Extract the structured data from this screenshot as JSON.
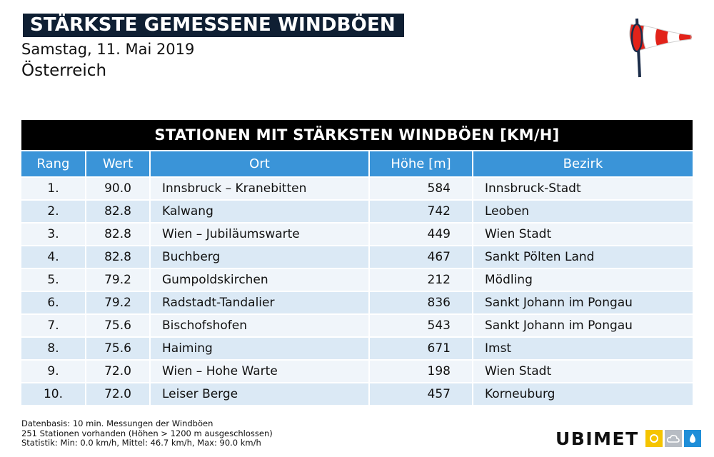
{
  "header": {
    "title": "STÄRKSTE GEMESSENE WINDBÖEN",
    "date": "Samstag, 11. Mai 2019",
    "region": "Österreich",
    "icon": "windsock-icon"
  },
  "table": {
    "title": "STATIONEN MIT STÄRKSTEN WINDBÖEN [KM/H]",
    "columns": [
      "Rang",
      "Wert",
      "Ort",
      "Höhe [m]",
      "Bezirk"
    ],
    "rows": [
      {
        "rank": "1.",
        "value": "90.0",
        "ort": "Innsbruck – Kranebitten",
        "hoehe": "584",
        "bezirk": "Innsbruck-Stadt"
      },
      {
        "rank": "2.",
        "value": "82.8",
        "ort": "Kalwang",
        "hoehe": "742",
        "bezirk": "Leoben"
      },
      {
        "rank": "3.",
        "value": "82.8",
        "ort": "Wien – Jubiläumswarte",
        "hoehe": "449",
        "bezirk": "Wien Stadt"
      },
      {
        "rank": "4.",
        "value": "82.8",
        "ort": "Buchberg",
        "hoehe": "467",
        "bezirk": "Sankt Pölten Land"
      },
      {
        "rank": "5.",
        "value": "79.2",
        "ort": "Gumpoldskirchen",
        "hoehe": "212",
        "bezirk": "Mödling"
      },
      {
        "rank": "6.",
        "value": "79.2",
        "ort": "Radstadt-Tandalier",
        "hoehe": "836",
        "bezirk": "Sankt Johann im Pongau"
      },
      {
        "rank": "7.",
        "value": "75.6",
        "ort": "Bischofshofen",
        "hoehe": "543",
        "bezirk": "Sankt Johann im Pongau"
      },
      {
        "rank": "8.",
        "value": "75.6",
        "ort": "Haiming",
        "hoehe": "671",
        "bezirk": "Imst"
      },
      {
        "rank": "9.",
        "value": "72.0",
        "ort": "Wien – Hohe Warte",
        "hoehe": "198",
        "bezirk": "Wien Stadt"
      },
      {
        "rank": "10.",
        "value": "72.0",
        "ort": "Leiser Berge",
        "hoehe": "457",
        "bezirk": "Korneuburg"
      }
    ]
  },
  "footer": {
    "line1": "Datenbasis: 10 min. Messungen der Windböen",
    "line2": "251 Stationen vorhanden (Höhen > 1200 m ausgeschlossen)",
    "line3": "Statistik: Min: 0.0 km/h, Mittel: 46.7 km/h, Max: 90.0 km/h"
  },
  "logo": {
    "text": "UBIMET",
    "icons": [
      "sun-icon",
      "cloud-icon",
      "raindrop-icon"
    ]
  },
  "colors": {
    "title_bg": "#0f1f33",
    "table_title_bg": "#000000",
    "column_header_bg": "#3a94d8",
    "row_light": "#f0f5fa",
    "row_dark": "#dbe9f5",
    "windsock_red": "#e2231a"
  }
}
